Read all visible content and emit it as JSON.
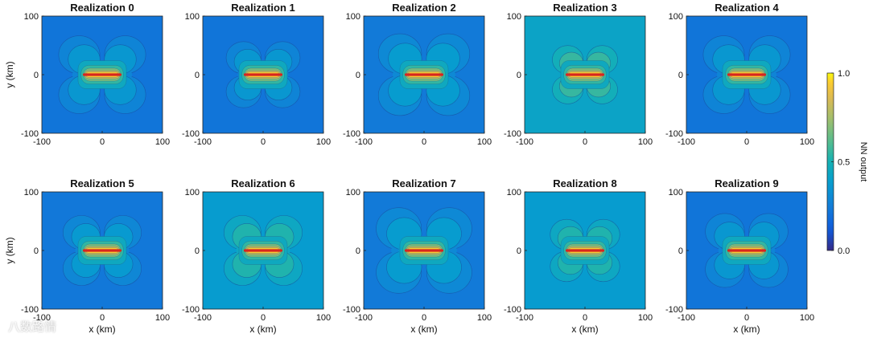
{
  "chart_data": {
    "type": "heatmap",
    "panels": [
      {
        "title": "Realization 0",
        "background_level": 0.22,
        "lobe_size": 1.0
      },
      {
        "title": "Realization 1",
        "background_level": 0.22,
        "lobe_size": 0.85
      },
      {
        "title": "Realization 2",
        "background_level": 0.24,
        "lobe_size": 1.05
      },
      {
        "title": "Realization 3",
        "background_level": 0.42,
        "lobe_size": 0.75
      },
      {
        "title": "Realization 4",
        "background_level": 0.22,
        "lobe_size": 1.0
      },
      {
        "title": "Realization 5",
        "background_level": 0.23,
        "lobe_size": 0.9
      },
      {
        "title": "Realization 6",
        "background_level": 0.38,
        "lobe_size": 0.9
      },
      {
        "title": "Realization 7",
        "background_level": 0.24,
        "lobe_size": 1.1
      },
      {
        "title": "Realization 8",
        "background_level": 0.38,
        "lobe_size": 0.8
      },
      {
        "title": "Realization 9",
        "background_level": 0.22,
        "lobe_size": 0.95
      }
    ],
    "xlabel": "x (km)",
    "ylabel": "y (km)",
    "xlim": [
      -100,
      100
    ],
    "ylim": [
      -100,
      100
    ],
    "xticks": [
      "-100",
      "0",
      "100"
    ],
    "yticks": [
      "100",
      "0",
      "-100"
    ],
    "colorbar": {
      "label": "NN output",
      "range": [
        0.0,
        1.0
      ],
      "ticks": [
        "1.0",
        "0.5",
        "0.0"
      ],
      "colormap": "parula"
    },
    "fault_line": {
      "x": [
        -30,
        30
      ],
      "y": [
        0,
        0
      ],
      "color": "#d7261f"
    }
  },
  "watermark": "八数路情"
}
